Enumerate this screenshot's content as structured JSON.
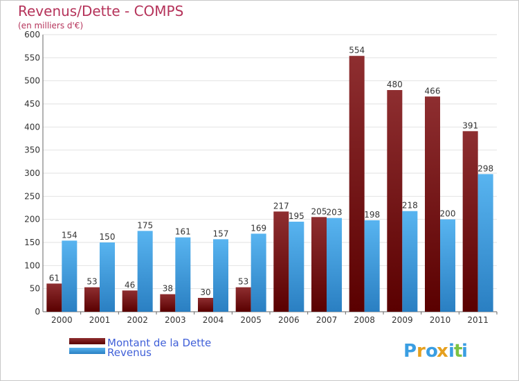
{
  "chart_data": {
    "type": "bar",
    "title": "Revenus/Dette - COMPS",
    "subtitle": "(en milliers d'€)",
    "categories": [
      "2000",
      "2001",
      "2002",
      "2003",
      "2004",
      "2005",
      "2006",
      "2007",
      "2008",
      "2009",
      "2010",
      "2011"
    ],
    "series": [
      {
        "name": "Montant de la Dette",
        "color": "#7a1518",
        "values": [
          61,
          53,
          46,
          38,
          30,
          53,
          217,
          205,
          554,
          480,
          466,
          391
        ]
      },
      {
        "name": "Revenus",
        "color": "#3a9ee2",
        "values": [
          154,
          150,
          175,
          161,
          157,
          169,
          195,
          203,
          198,
          218,
          200,
          298
        ]
      }
    ],
    "ylim": [
      0,
      600
    ],
    "yticks": [
      0,
      50,
      100,
      150,
      200,
      250,
      300,
      350,
      400,
      450,
      500,
      550,
      600
    ],
    "grid": true,
    "legend_position": "bottom-left"
  },
  "logo": {
    "text": "Proxiti",
    "letters": [
      "P",
      "r",
      "o",
      "x",
      "i",
      "t",
      "i"
    ],
    "colors": [
      "#3a9ee2",
      "#e6a01e",
      "#3a9ee2",
      "#e6a01e",
      "#3a9ee2",
      "#7cc242",
      "#3a9ee2"
    ]
  }
}
